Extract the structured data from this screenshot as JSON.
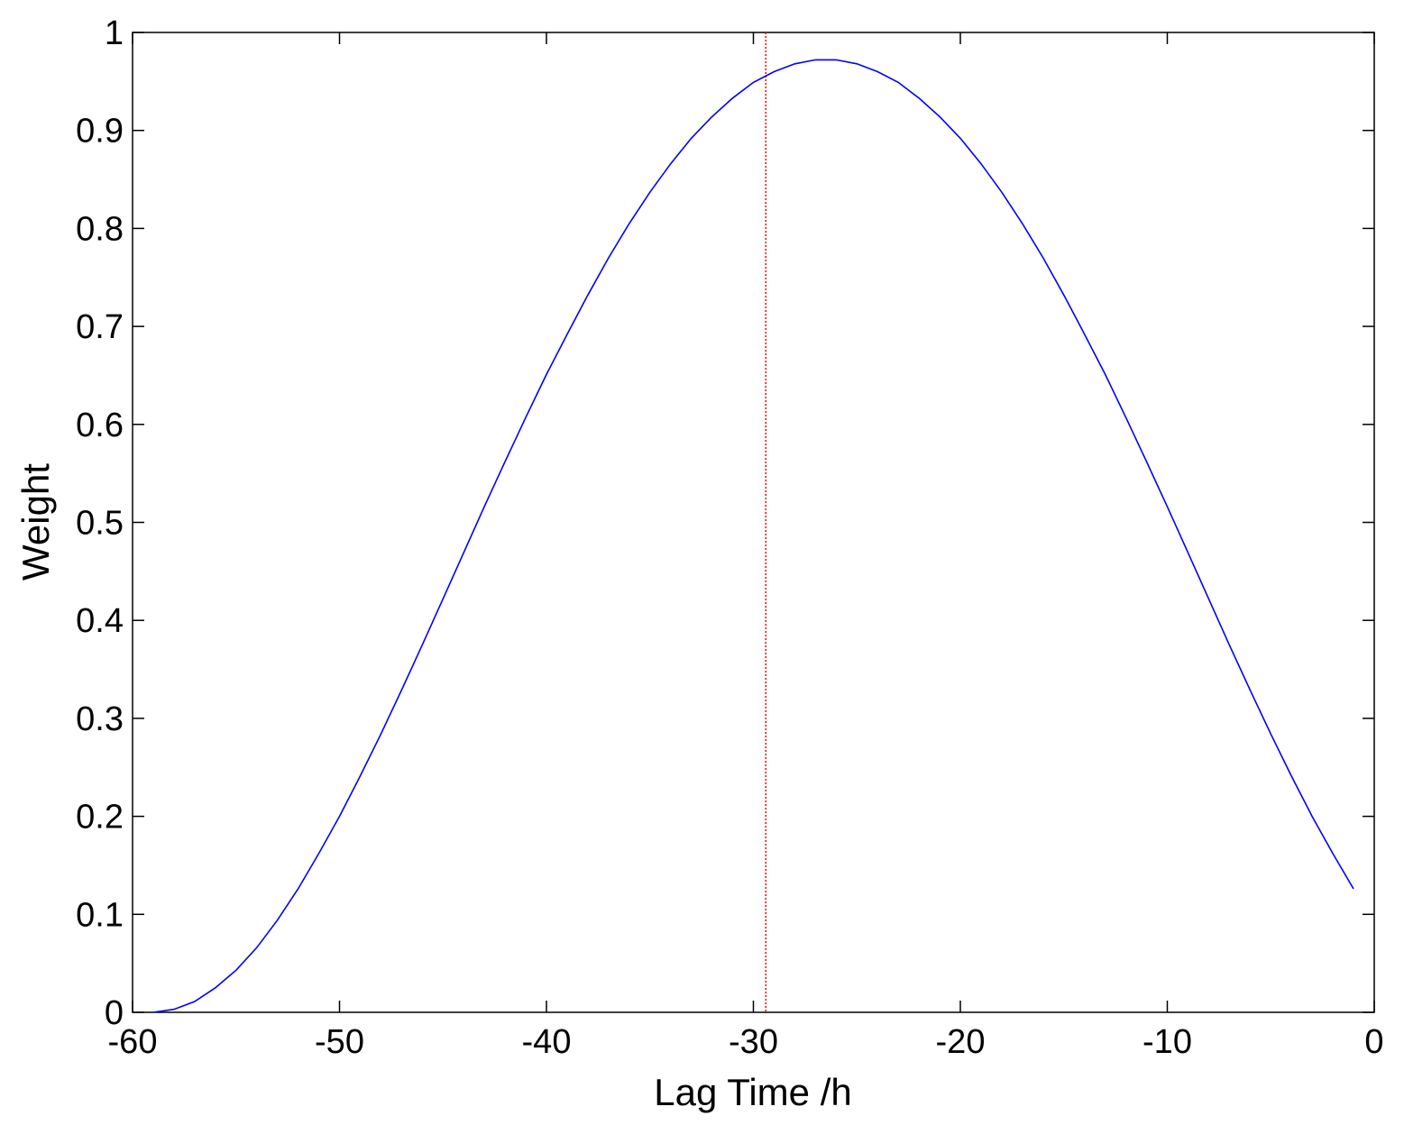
{
  "chart_data": {
    "type": "line",
    "title": "",
    "xlabel": "Lag Time /h",
    "ylabel": "Weight",
    "xlim": [
      -60,
      0
    ],
    "ylim": [
      0,
      1
    ],
    "xticks": [
      -60,
      -50,
      -40,
      -30,
      -20,
      -10,
      0
    ],
    "yticks": [
      0,
      0.1,
      0.2,
      0.3,
      0.4,
      0.5,
      0.6,
      0.7,
      0.8,
      0.9,
      1
    ],
    "xtick_labels": [
      "-60",
      "-50",
      "-40",
      "-30",
      "-20",
      "-10",
      "0"
    ],
    "ytick_labels": [
      "0",
      "0.1",
      "0.2",
      "0.3",
      "0.4",
      "0.5",
      "0.6",
      "0.7",
      "0.8",
      "0.9",
      "1"
    ],
    "grid": false,
    "series": [
      {
        "color": "#0000ff",
        "x": [
          -59,
          -58,
          -57,
          -56,
          -55,
          -54,
          -53,
          -52,
          -51,
          -50,
          -49,
          -48,
          -47,
          -46,
          -45,
          -44,
          -43,
          -42,
          -41,
          -40,
          -39,
          -38,
          -37,
          -36,
          -35,
          -34,
          -33,
          -32,
          -31,
          -30,
          -29,
          -28,
          -27,
          -26,
          -25,
          -24,
          -23,
          -22,
          -21,
          -20,
          -19,
          -18,
          -17,
          -16,
          -15,
          -14,
          -13,
          -12,
          -11,
          -10,
          -9,
          -8,
          -7,
          -6,
          -5,
          -4,
          -3,
          -2,
          -1
        ],
        "y": [
          0,
          0.003,
          0.011,
          0.025,
          0.043,
          0.066,
          0.094,
          0.126,
          0.162,
          0.2,
          0.241,
          0.284,
          0.329,
          0.375,
          0.422,
          0.469,
          0.516,
          0.562,
          0.607,
          0.651,
          0.692,
          0.732,
          0.77,
          0.805,
          0.837,
          0.866,
          0.892,
          0.914,
          0.933,
          0.949,
          0.96,
          0.968,
          0.972,
          0.972,
          0.968,
          0.96,
          0.949,
          0.933,
          0.914,
          0.892,
          0.866,
          0.837,
          0.805,
          0.77,
          0.732,
          0.692,
          0.651,
          0.607,
          0.562,
          0.516,
          0.469,
          0.422,
          0.375,
          0.329,
          0.284,
          0.241,
          0.2,
          0.162,
          0.126
        ]
      }
    ],
    "vline": {
      "x": -29.4,
      "color": "#ff0000",
      "style": "dotted"
    }
  }
}
